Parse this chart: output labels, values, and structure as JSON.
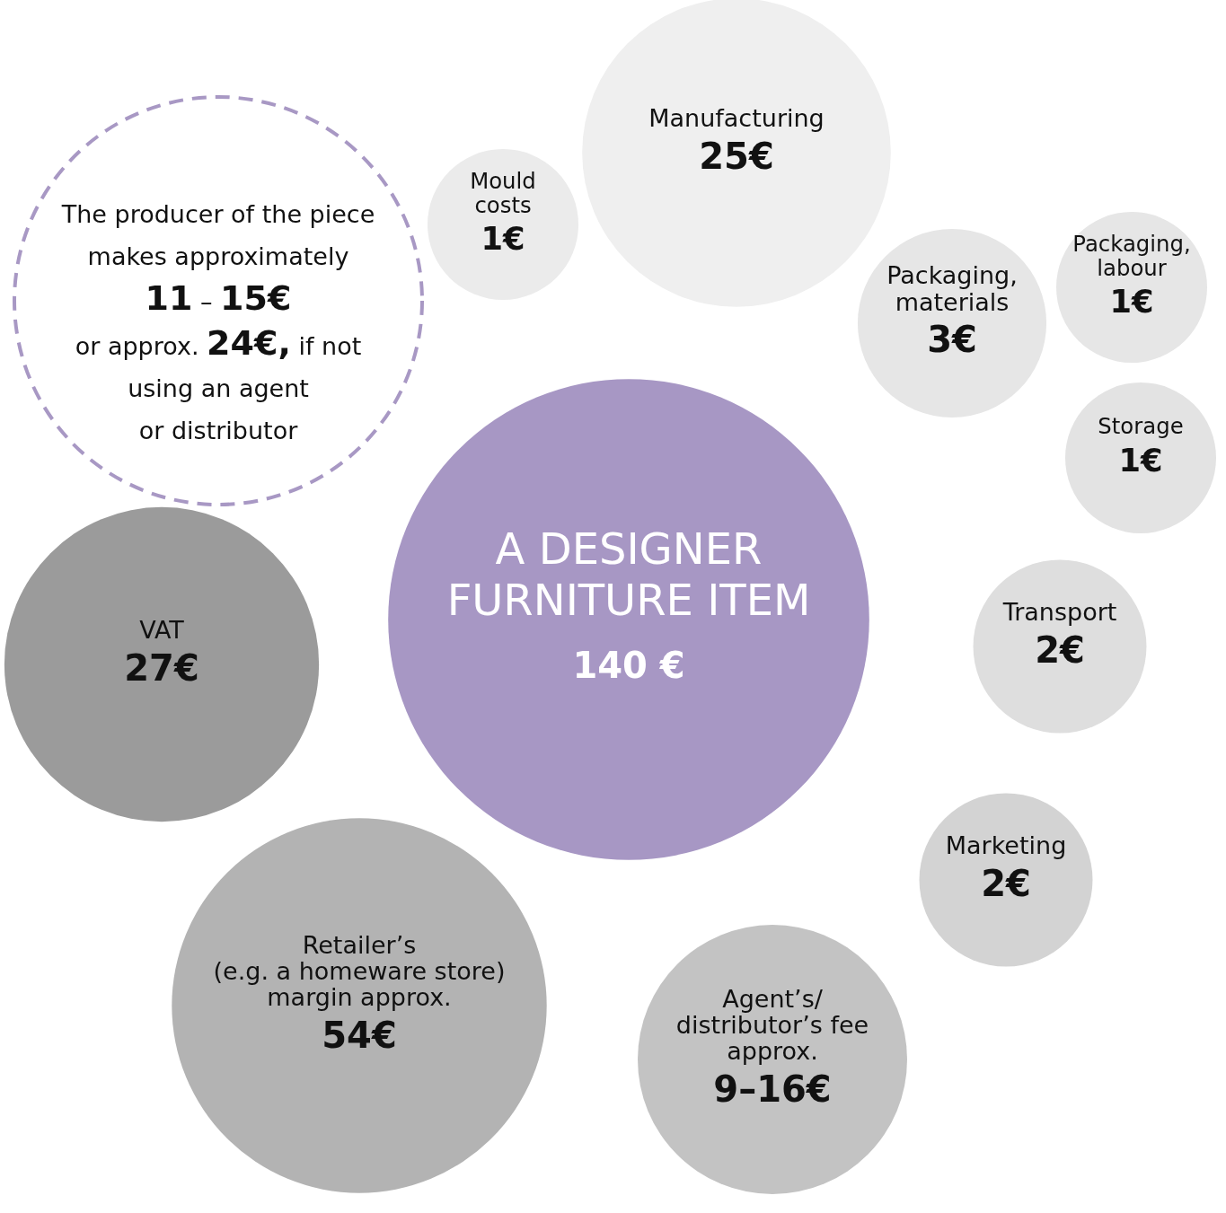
{
  "chart_data": {
    "type": "other",
    "categories": [
      "A DESIGNER\nFURNITURE ITEM",
      "Manufacturing",
      "Mould\ncosts",
      "Packaging,\nmaterials",
      "Packaging,\nlabour",
      "Storage",
      "Transport",
      "Marketing",
      "Agent’s/\ndistributor’s fee\napprox.",
      "Retailer’s\n(e.g. a homeware store)\nmargin approx.",
      "VAT"
    ],
    "values": [
      140,
      25,
      1,
      3,
      1,
      1,
      2,
      2,
      null,
      54,
      27
    ],
    "value_labels": [
      "140 €",
      "25€",
      "1€",
      "3€",
      "1€",
      "1€",
      "2€",
      "2€",
      "9–16€",
      "54€",
      "27€"
    ],
    "colors": [
      "#a797c4",
      "#efefef",
      "#ebebeb",
      "#e6e6e6",
      "#e6e6e6",
      "#e3e3e3",
      "#dedede",
      "#d3d3d3",
      "#c3c3c3",
      "#b3b3b3",
      "#9b9b9b"
    ],
    "annotations": [
      "The producer of the piece\nmakes approximately\n11 – 15€\nor approx. 24€, if not\nusing an agent\nor distributor"
    ]
  }
}
